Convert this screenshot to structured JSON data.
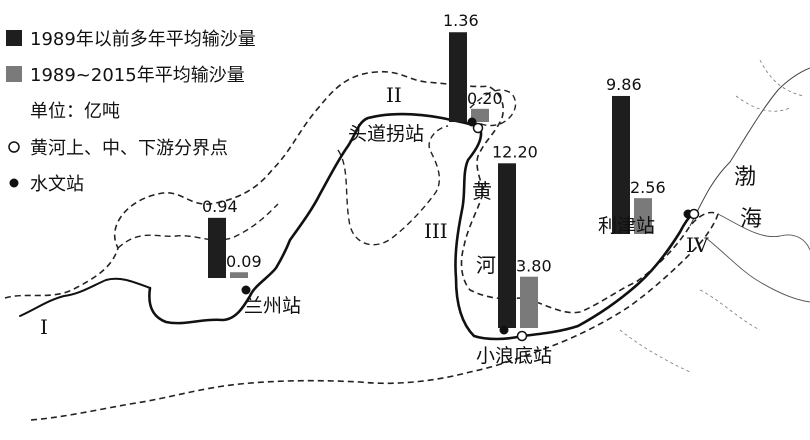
{
  "legend": {
    "pre_1989": "1989年以前多年平均输沙量",
    "post_1989": "1989~2015年平均输沙量",
    "unit": "单位：亿吨",
    "boundary_point": "黄河上、中、下游分界点",
    "hydro_station": "水文站"
  },
  "colors": {
    "pre_1989_bar": "#1e1e1e",
    "post_1989_bar": "#7a7a7a",
    "river": "#111111",
    "boundary": "#222222"
  },
  "labels": {
    "river": [
      "黄",
      "河"
    ],
    "sea": [
      "渤",
      "海"
    ]
  },
  "regions": {
    "I": "I",
    "II": "II",
    "III": "III",
    "IV": "IV"
  },
  "chart_data": {
    "type": "bar",
    "categories": [
      "兰州站",
      "头道拐站",
      "小浪底站",
      "利津站"
    ],
    "series": [
      {
        "name": "1989年以前多年平均输沙量",
        "values": [
          0.94,
          1.36,
          12.2,
          9.86
        ]
      },
      {
        "name": "1989~2015年平均输沙量",
        "values": [
          0.09,
          0.2,
          3.8,
          2.56
        ]
      }
    ],
    "value_labels": {
      "pre": [
        "0.94",
        "1.36",
        "12.20",
        "9.86"
      ],
      "post": [
        "0.09",
        "0.20",
        "3.80",
        "2.56"
      ]
    },
    "ylabel": "单位：亿吨"
  }
}
